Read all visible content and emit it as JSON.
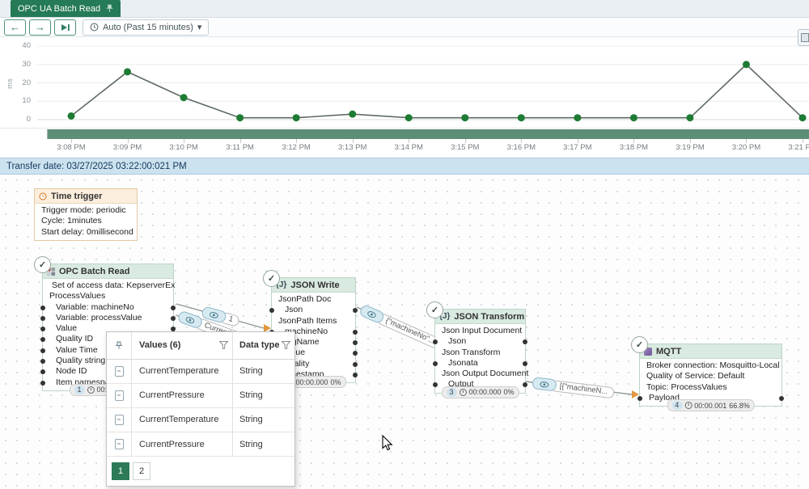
{
  "tab": {
    "title": "OPC UA Batch Read"
  },
  "icons": {
    "back": "←",
    "forward": "→",
    "caret": "▾",
    "check": "✓"
  },
  "toolbar": {
    "time_range": "Auto (Past 15 minutes)"
  },
  "chart_data": {
    "type": "line",
    "x": [
      "3:08 PM",
      "3:09 PM",
      "3:10 PM",
      "3:11 PM",
      "3:12 PM",
      "3:13 PM",
      "3:14 PM",
      "3:15 PM",
      "3:16 PM",
      "3:17 PM",
      "3:18 PM",
      "3:19 PM",
      "3:20 PM",
      "3:21 PM"
    ],
    "values": [
      2,
      26,
      12,
      1,
      1,
      3,
      1,
      1,
      1,
      1,
      1,
      1,
      30,
      1
    ],
    "title": "",
    "xlabel": "",
    "ylabel": "ms",
    "yticks": [
      0,
      10,
      20,
      30,
      40
    ],
    "ylim": [
      0,
      40
    ],
    "grid": "horizontal",
    "line_color": "#5f6b64",
    "point_color": "#1e7b33"
  },
  "transfer_bar": {
    "text": "Transfer date: 03/27/2025 03:22:00:021 PM"
  },
  "nodes": {
    "trigger": {
      "title": "Time trigger",
      "rows": [
        "Trigger mode: periodic",
        "Cycle: 1minutes",
        "Start delay: 0millisecond"
      ]
    },
    "opc": {
      "title": "OPC Batch Read",
      "rows": [
        "Set of access data: KepserverEx",
        "ProcessValues",
        "Variable: machineNo",
        "Variable: processValue",
        "Value",
        "Quality ID",
        "Value Time",
        "Quality string",
        "Node ID",
        "Item namespace"
      ],
      "footer": {
        "count": "1",
        "time": "00:00.000",
        "pct": "0%"
      }
    },
    "json_write": {
      "title": "JSON Write",
      "icon_label": "{J}",
      "rows": [
        "JsonPath Doc",
        "Json",
        "JsonPath Items",
        "machineNo",
        "tagName",
        "value",
        "quality",
        "timestamp"
      ],
      "footer": {
        "time": "00:00.000",
        "pct": "0%"
      }
    },
    "json_transform": {
      "title": "JSON Transform",
      "icon_label": "{J}",
      "rows": [
        "Json Input Document",
        "Json",
        "Json Transform",
        "Jsonata",
        "Json Output Document",
        "Output"
      ],
      "footer": {
        "count": "3",
        "time": "00:00.000",
        "pct": "0%"
      }
    },
    "mqtt": {
      "title": "MQTT",
      "rows": [
        "Broker connection: Mosquitto-Local",
        "Quality of Service: Default",
        "Topic: ProcessValues",
        "Payload"
      ],
      "footer": {
        "count": "4",
        "time": "00:00.001",
        "pct": "66.8%"
      }
    }
  },
  "wires": {
    "labels": [
      "1",
      "CurrentTe...",
      "{\"machineNo\"...",
      "[{\"machineN..."
    ]
  },
  "popup": {
    "col_values": "Values (6)",
    "col_type": "Data type",
    "rows": [
      {
        "value": "CurrentTemperature",
        "type": "String"
      },
      {
        "value": "CurrentPressure",
        "type": "String"
      },
      {
        "value": "CurrentTemperature",
        "type": "String"
      },
      {
        "value": "CurrentPressure",
        "type": "String"
      }
    ],
    "pages": [
      "1",
      "2"
    ]
  }
}
